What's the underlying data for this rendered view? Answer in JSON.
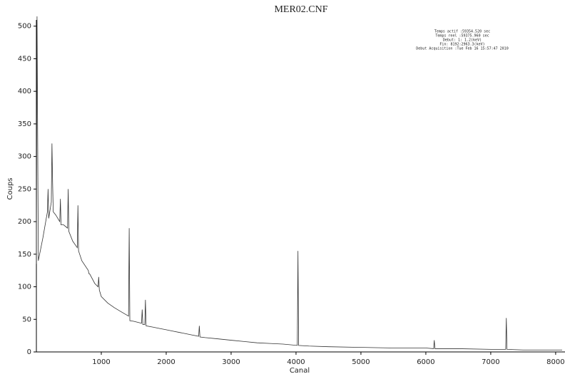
{
  "chart_data": {
    "type": "line",
    "title": "MER02.CNF",
    "x_label": "Canal",
    "y_label": "Coups",
    "annotations": [
      "Temps actif  :59354.520 sec",
      "Temps reel :59375.960 sec",
      "Debut:  1:   1.2(keV)",
      "Fin: 8192:2963.3(keV)",
      "Debut Acquisition :Tue Feb 16 15:57:47 2010"
    ],
    "x": [
      0,
      10,
      30,
      100,
      170,
      180,
      190,
      230,
      240,
      250,
      260,
      300,
      360,
      370,
      380,
      420,
      480,
      490,
      500,
      560,
      630,
      640,
      650,
      700,
      800,
      810,
      820,
      900,
      950,
      960,
      970,
      1000,
      1100,
      1200,
      1300,
      1420,
      1430,
      1440,
      1500,
      1620,
      1630,
      1640,
      1670,
      1680,
      1690,
      1800,
      1900,
      2000,
      2100,
      2200,
      2300,
      2400,
      2500,
      2510,
      2520,
      2600,
      2800,
      3000,
      3200,
      3400,
      3600,
      3800,
      4020,
      4030,
      4040,
      4200,
      4500,
      5000,
      5500,
      6000,
      6120,
      6130,
      6140,
      6500,
      7000,
      7230,
      7240,
      7250,
      7500,
      8000,
      8100
    ],
    "series": [
      {
        "color": "#333333",
        "values": [
          135,
          515,
          140,
          175,
          215,
          250,
          205,
          230,
          320,
          260,
          215,
          210,
          200,
          235,
          195,
          195,
          190,
          250,
          185,
          170,
          160,
          225,
          155,
          140,
          125,
          120,
          120,
          105,
          100,
          115,
          95,
          85,
          75,
          68,
          62,
          55,
          190,
          48,
          47,
          44,
          65,
          42,
          42,
          80,
          40,
          38,
          36,
          34,
          32,
          30,
          28,
          26,
          24,
          40,
          23,
          22,
          20,
          18,
          16,
          14,
          13,
          12,
          10,
          155,
          10,
          9,
          8,
          7,
          6,
          6,
          5,
          18,
          5,
          5,
          4,
          4,
          52,
          4,
          3,
          3,
          3
        ]
      }
    ],
    "xlim": [
      0,
      8100
    ],
    "ylim": [
      0,
      515
    ],
    "xticks": [
      1000,
      2000,
      3000,
      4000,
      5000,
      6000,
      7000,
      8000
    ],
    "yticks": [
      0,
      50,
      100,
      150,
      200,
      250,
      300,
      350,
      400,
      450,
      500
    ]
  }
}
